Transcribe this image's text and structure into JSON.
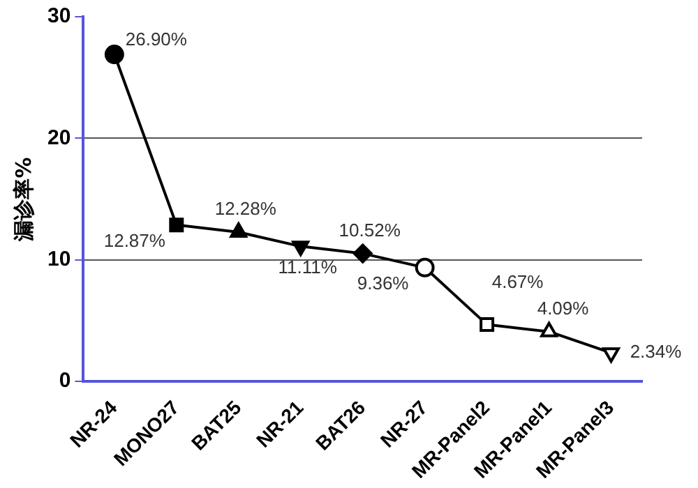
{
  "chart_data": {
    "type": "line",
    "ylabel": "漏诊率%",
    "categories": [
      "NR-24",
      "MONO27",
      "BAT25",
      "NR-21",
      "BAT26",
      "NR-27",
      "MR-Panel2",
      "MR-Panel1",
      "MR-Panel3"
    ],
    "series": [
      {
        "color": "#000000",
        "values": [
          26.9,
          12.87,
          12.28,
          11.11,
          10.52,
          9.36,
          4.67,
          4.09,
          2.34
        ],
        "value_labels": [
          "26.90%",
          "12.87%",
          "12.28%",
          "11.11%",
          "10.52%",
          "9.36%",
          "4.67%",
          "4.09%",
          "2.34%"
        ]
      }
    ],
    "marker": [
      "circle",
      "square",
      "triangle",
      "triangle-down",
      "diamond",
      "circle-open",
      "square-open",
      "triangle-open",
      "triangle-down-open"
    ],
    "ylim": [
      0,
      30
    ],
    "yticks": [
      0,
      10,
      20,
      30
    ],
    "grid": "y",
    "line_style": "solid",
    "legend": false
  }
}
